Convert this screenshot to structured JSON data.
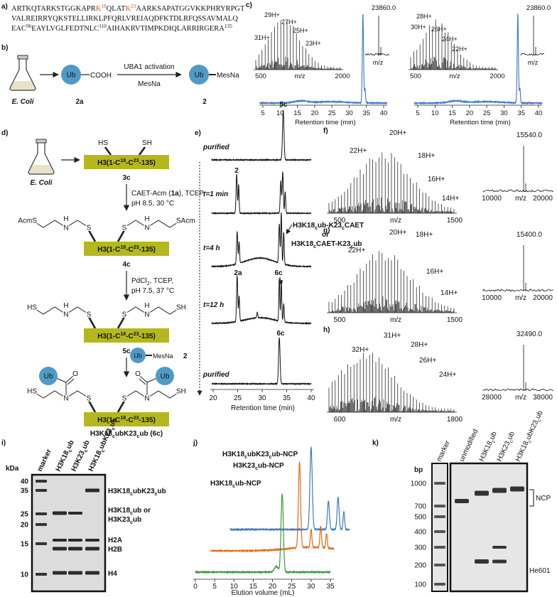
{
  "a": {
    "label": "a)",
    "line1": [
      "ARTKQTARKSTGGKAPR",
      "K",
      "18",
      "QLAT",
      "K",
      "23",
      "AARKSAPATGGVKKPHRYRPGT"
    ],
    "line2": "VALREIRRYQKSTELLIRKLPFQRLVREIAQDFKTDLRFQSSAVMALQ",
    "line3": [
      "EAC",
      "96",
      "EAYLVGLFEDTNLC",
      "110",
      "AIHAKRVTIMPKDIQLARRIRGERA",
      "135"
    ]
  },
  "b": {
    "label": "b)",
    "organism": "E. Coli",
    "ub": "Ub",
    "acid": "COOH",
    "start": "2a",
    "step": "UBA1 activation",
    "reagent": "MesNa",
    "product_group": "MesNa",
    "product": "2"
  },
  "c": {
    "label": "c)",
    "rt_ticks": [
      5,
      10,
      15,
      20,
      25,
      30,
      35,
      40
    ],
    "rt_axis": "Retention time (min)",
    "mz_axis": "m/z",
    "panels": [
      {
        "charges": [
          "29H+",
          "27H+",
          "25H+",
          "31H+",
          "23H+"
        ],
        "mass": "23860.0",
        "mz_ticks": [
          500,
          2000
        ]
      },
      {
        "charges": [
          "28H+",
          "30H+",
          "26H+",
          "24H+",
          "22H+"
        ],
        "mass": "23860.0",
        "mz_ticks": [
          500,
          2000
        ]
      }
    ]
  },
  "d": {
    "label": "d)",
    "organism": "E. Coli",
    "thiol_l": "HS",
    "thiol_r": "SH",
    "protein": [
      "H3(1-C",
      "18",
      "-C",
      "23",
      "-135)"
    ],
    "cmpd_3c": "3c",
    "step1": [
      "CAET-Acm (",
      "1a",
      "), TCEP,"
    ],
    "step1_cond": "pH 8.5, 30 °C",
    "acm_l": "AcmS",
    "acm_r": "SAcm",
    "atom_n": "N",
    "atom_h": "H",
    "atom_s": "S",
    "atom_o": "O",
    "cmpd_4c": "4c",
    "step2": [
      "PdCl",
      "2",
      ", TCEP,"
    ],
    "step2_cond": "pH 7.5, 37 °C",
    "cmpd_5c": "5c",
    "ub": "Ub",
    "mesna": "MesNa",
    "cmpd_2": "2",
    "product": [
      "H3K18",
      "c",
      "ubK23",
      "c",
      "ub (6c)"
    ]
  },
  "e": {
    "label": "e)",
    "conditions": [
      "purified",
      "t=1 min",
      "t=4 h",
      "t=12 h",
      "purified"
    ],
    "p5c": "5c",
    "p2": "2",
    "p2a": "2a",
    "p6c": "6c",
    "intermediate_a": [
      "H3K18",
      "c",
      "ub-K23",
      "c",
      "CAET"
    ],
    "or": "or",
    "intermediate_b": [
      "H3K18",
      "c",
      "CAET-K23",
      "c",
      "ub"
    ],
    "ticks": [
      20,
      25,
      30,
      35,
      40
    ],
    "axis": "Retention time (min)"
  },
  "ms": [
    {
      "label": "f)",
      "charges": [
        "20H+",
        "22H+",
        "18H+",
        "16H+",
        "14H+"
      ],
      "mass": "15540.0",
      "inset_ticks": [
        10000,
        20000
      ],
      "ticks": [
        500,
        1500
      ],
      "axis": "m/z"
    },
    {
      "label": "g)",
      "charges": [
        "20H+",
        "18H+",
        "22H+",
        "16H+",
        "14H+"
      ],
      "mass": "15400.0",
      "inset_ticks": [
        10000,
        20000
      ],
      "ticks": [
        500,
        1500
      ],
      "axis": "m/z"
    },
    {
      "label": "h)",
      "charges": [
        "31H+",
        "32H+",
        "28H+",
        "26H+",
        "24H+"
      ],
      "mass": "32490.0",
      "inset_ticks": [
        28000,
        38000
      ],
      "ticks": [
        600,
        1800
      ],
      "axis": "m/z"
    }
  ],
  "i": {
    "label": "i)",
    "unit": "kDa",
    "lanes": [
      "marker",
      [
        "H3K18",
        "c",
        "ub"
      ],
      [
        "H3K23",
        "c",
        "ub"
      ],
      [
        "H3K18",
        "c",
        "ubK23",
        "c",
        "ub"
      ]
    ],
    "ticks": [
      40,
      35,
      25,
      20,
      15,
      10
    ],
    "band_di": [
      "H3K18",
      "c",
      "ubK23",
      "c",
      "ub"
    ],
    "band_mono_a": [
      "H3K18",
      "c",
      "ub or"
    ],
    "band_mono_b": [
      "H3K23",
      "c",
      "ub"
    ],
    "h2a": "H2A",
    "h2b": "H2B",
    "h4": "H4"
  },
  "j": {
    "label": "j)",
    "traces": [
      {
        "name": [
          "H3K18",
          "c",
          "ubK23",
          "c",
          "ub-NCP"
        ],
        "color": "#3b79c8"
      },
      {
        "name": [
          "H3K23",
          "c",
          "ub-NCP"
        ],
        "color": "#e2691c"
      },
      {
        "name": [
          "H3K18",
          "c",
          "ub-NCP"
        ],
        "color": "#3c9a3c"
      }
    ],
    "ticks": [
      0,
      5,
      10,
      15,
      20,
      25,
      30,
      35
    ],
    "axis": "Elution volume (mL)"
  },
  "k": {
    "label": "k)",
    "unit": "bp",
    "lanes": [
      "marker",
      "unmodified",
      [
        "H3K18",
        "c",
        "ub"
      ],
      [
        "H3K23",
        "c",
        "ub"
      ],
      [
        "H3K18",
        "c",
        "ubK23",
        "c",
        "ub"
      ]
    ],
    "ticks": [
      1000,
      700,
      500,
      400,
      300,
      200,
      100
    ],
    "ncp": "NCP",
    "dna": "He601"
  }
}
